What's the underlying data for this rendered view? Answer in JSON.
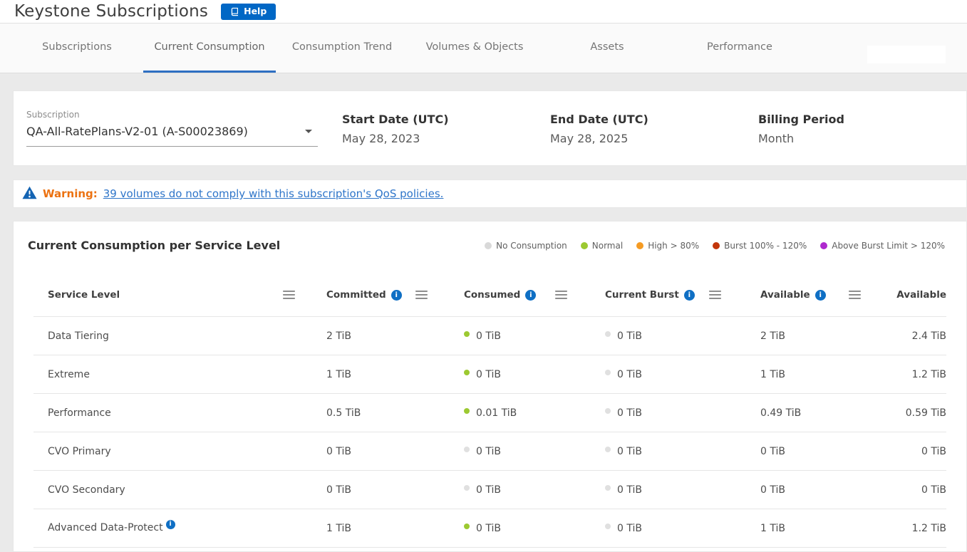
{
  "header": {
    "title": "Keystone Subscriptions",
    "help_label": "Help"
  },
  "tabs": [
    {
      "label": "Subscriptions",
      "active": false
    },
    {
      "label": "Current Consumption",
      "active": true
    },
    {
      "label": "Consumption Trend",
      "active": false
    },
    {
      "label": "Volumes & Objects",
      "active": false
    },
    {
      "label": "Assets",
      "active": false
    },
    {
      "label": "Performance",
      "active": false
    }
  ],
  "subscription_panel": {
    "select_label": "Subscription",
    "select_value": "QA-All-RatePlans-V2-01 (A-S00023869)",
    "fields": [
      {
        "label": "Start Date (UTC)",
        "value": "May 28, 2023"
      },
      {
        "label": "End Date (UTC)",
        "value": "May 28, 2025"
      },
      {
        "label": "Billing Period",
        "value": "Month"
      }
    ]
  },
  "warning_banner": {
    "label": "Warning:",
    "link_text": "39 volumes do not comply with this subscription's QoS policies."
  },
  "consumption_card": {
    "title": "Current Consumption per Service Level",
    "legend": [
      {
        "label": "No Consumption",
        "color": "#D9D9D9"
      },
      {
        "label": "Normal",
        "color": "#9CC931"
      },
      {
        "label": "High > 80%",
        "color": "#F59B23"
      },
      {
        "label": "Burst 100% - 120%",
        "color": "#C2360A"
      },
      {
        "label": "Above Burst Limit > 120%",
        "color": "#AE29CE"
      }
    ],
    "status_colors": {
      "none": "#E0E0E0",
      "normal": "#9CC931"
    },
    "table": {
      "headers": [
        {
          "label": "Service Level",
          "info": false
        },
        {
          "label": "Committed",
          "info": true
        },
        {
          "label": "Consumed",
          "info": true
        },
        {
          "label": "Current Burst",
          "info": true
        },
        {
          "label": "Available",
          "info": true
        },
        {
          "label": "Available",
          "info": false
        }
      ],
      "rows": [
        {
          "service_level": "Data Tiering",
          "row_info": false,
          "committed": "2 TiB",
          "consumed": "0 TiB",
          "consumed_status": "normal",
          "current_burst": "0 TiB",
          "burst_status": "none",
          "available": "2 TiB",
          "available_with_burst": "2.4 TiB"
        },
        {
          "service_level": "Extreme",
          "row_info": false,
          "committed": "1 TiB",
          "consumed": "0 TiB",
          "consumed_status": "normal",
          "current_burst": "0 TiB",
          "burst_status": "none",
          "available": "1 TiB",
          "available_with_burst": "1.2 TiB"
        },
        {
          "service_level": "Performance",
          "row_info": false,
          "committed": "0.5 TiB",
          "consumed": "0.01 TiB",
          "consumed_status": "normal",
          "current_burst": "0 TiB",
          "burst_status": "none",
          "available": "0.49 TiB",
          "available_with_burst": "0.59 TiB"
        },
        {
          "service_level": "CVO Primary",
          "row_info": false,
          "committed": "0 TiB",
          "consumed": "0 TiB",
          "consumed_status": "none",
          "current_burst": "0 TiB",
          "burst_status": "none",
          "available": "0 TiB",
          "available_with_burst": "0 TiB"
        },
        {
          "service_level": "CVO Secondary",
          "row_info": false,
          "committed": "0 TiB",
          "consumed": "0 TiB",
          "consumed_status": "none",
          "current_burst": "0 TiB",
          "burst_status": "none",
          "available": "0 TiB",
          "available_with_burst": "0 TiB"
        },
        {
          "service_level": "Advanced Data-Protect",
          "row_info": true,
          "committed": "1 TiB",
          "consumed": "0 TiB",
          "consumed_status": "normal",
          "current_burst": "0 TiB",
          "burst_status": "none",
          "available": "1 TiB",
          "available_with_burst": "1.2 TiB"
        }
      ]
    }
  }
}
